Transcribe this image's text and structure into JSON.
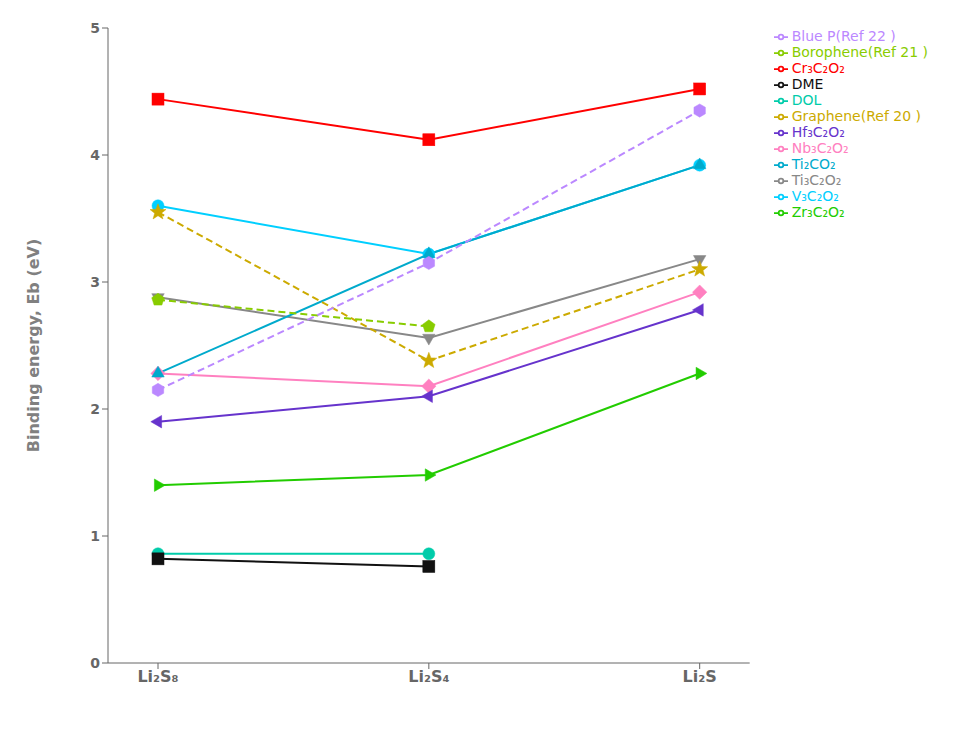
{
  "chart_data": {
    "type": "line",
    "categories": [
      "Li₂S₈",
      "Li₂S₄",
      "Li₂S"
    ],
    "y_label": "Binding energy, Eb (eV)",
    "ylim": [
      0,
      5
    ],
    "yticks": [
      0,
      1,
      2,
      3,
      4,
      5
    ],
    "grid": false,
    "legend": "right",
    "series": [
      {
        "name": "Cr₃C₂O₂",
        "color": "#ff0000",
        "marker": "square",
        "line_style": "solid",
        "values": [
          4.44,
          4.12,
          4.52
        ]
      },
      {
        "name": "V₃C₂O₂",
        "color": "#00cfff",
        "marker": "circle",
        "line_style": "solid",
        "values": [
          3.6,
          3.22,
          3.92
        ]
      },
      {
        "name": "Ti₃C₂O₂",
        "color": "#888888",
        "marker": "triangle_down",
        "line_style": "solid",
        "values": [
          2.88,
          2.56,
          3.18
        ]
      },
      {
        "name": "Nb₃C₂O₂",
        "color": "#ff80c0",
        "marker": "diamond",
        "line_style": "solid",
        "values": [
          2.28,
          2.18,
          2.92
        ]
      },
      {
        "name": "Hf₃C₂O₂",
        "color": "#6633cc",
        "marker": "triangle_left",
        "line_style": "solid",
        "values": [
          1.9,
          2.1,
          2.78
        ]
      },
      {
        "name": "Zr₃C₂O₂",
        "color": "#22cc00",
        "marker": "triangle_right",
        "line_style": "solid",
        "values": [
          1.4,
          1.48,
          2.28
        ]
      },
      {
        "name": "Ti₂CO₂",
        "color": "#00aacc",
        "marker": "triangle_up",
        "line_style": "solid",
        "values": [
          2.28,
          3.22,
          3.92
        ]
      },
      {
        "name": "Graphene(Ref 20 )",
        "color": "#ccaa00",
        "marker": "star",
        "line_style": "dashed",
        "values": [
          3.55,
          2.38,
          3.1
        ]
      },
      {
        "name": "Borophene(Ref 21 )",
        "color": "#88cc00",
        "marker": "pentagon",
        "line_style": "dashed",
        "values": [
          2.86,
          2.65,
          null
        ]
      },
      {
        "name": "Blue P(Ref 22 )",
        "color": "#bb88ff",
        "marker": "hexagon",
        "line_style": "dashed",
        "values": [
          2.15,
          3.15,
          4.35
        ]
      },
      {
        "name": "DOL",
        "color": "#00ccaa",
        "marker": "circle",
        "line_style": "solid",
        "values": [
          0.86,
          0.86,
          null
        ]
      },
      {
        "name": "DME",
        "color": "#111111",
        "marker": "square",
        "line_style": "solid",
        "values": [
          0.82,
          0.76,
          null
        ]
      }
    ]
  }
}
